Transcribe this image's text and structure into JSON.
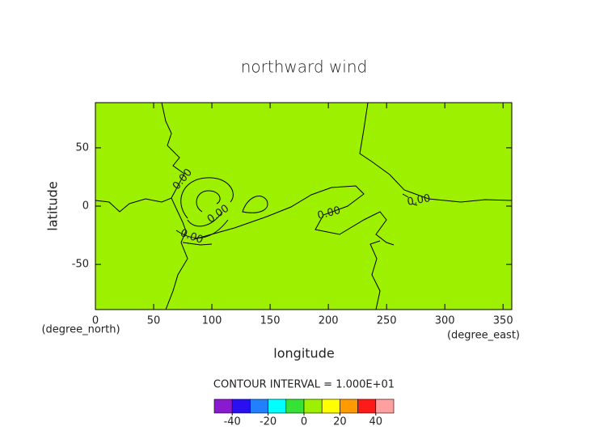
{
  "chart_data": {
    "type": "contour",
    "title": "northward wind",
    "xlabel": "longitude",
    "ylabel": "latitude",
    "xunit": "(degree_east)",
    "yunit": "(degree_north)",
    "xlim": [
      0,
      357.5
    ],
    "ylim": [
      -88.75,
      88.75
    ],
    "xticks": [
      0,
      50,
      100,
      150,
      200,
      250,
      300,
      350
    ],
    "yticks": [
      -50,
      0,
      50
    ],
    "grid": false,
    "contour_levels": [
      {
        "value": 0,
        "label": "0.00"
      }
    ],
    "line_color": "#000000",
    "contour_interval_text": "CONTOUR INTERVAL = 1.000E+01",
    "colorbar": {
      "bins": [
        -50,
        -40,
        -30,
        -20,
        -10,
        0,
        10,
        20,
        30,
        40,
        50
      ],
      "colors": [
        "#8a1ad0",
        "#2a10f0",
        "#2080ff",
        "#00ffff",
        "#36e236",
        "#9cf000",
        "#ffff00",
        "#ff9a00",
        "#ff1a1a",
        "#ffa0a0"
      ],
      "ticks": [
        -40,
        -20,
        0,
        20,
        40
      ]
    }
  }
}
